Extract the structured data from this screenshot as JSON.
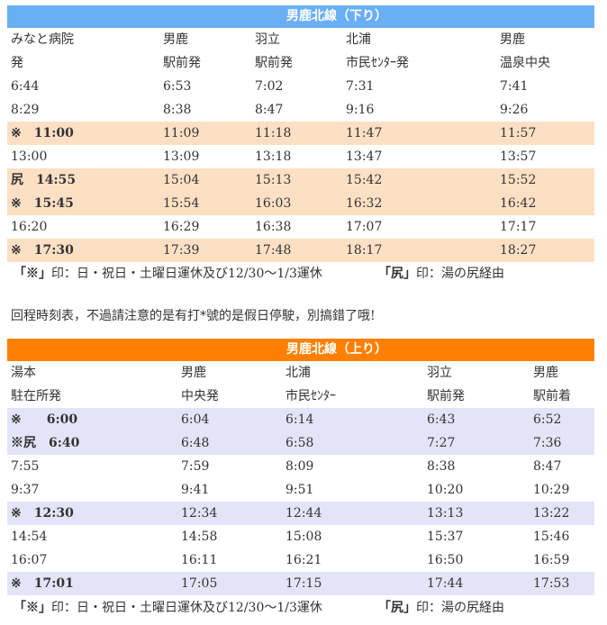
{
  "down": {
    "title": "男鹿北線（下り）",
    "header_color": "#6aaef4",
    "highlight_color": "#fde0c4",
    "col_headers_line1": [
      "みなと病院",
      "男鹿",
      "羽立",
      "北浦",
      "男鹿"
    ],
    "col_headers_line2": [
      "発",
      "駅前発",
      "駅前発",
      "市民ｾﾝﾀｰ発",
      "温泉中央"
    ],
    "rows": [
      {
        "cells": [
          "6:44",
          "6:53",
          "7:02",
          "7:31",
          "7:41"
        ],
        "hl": false
      },
      {
        "cells": [
          "8:29",
          "8:38",
          "8:47",
          "9:16",
          "9:26"
        ],
        "hl": false
      },
      {
        "cells": [
          "※　11:00",
          "11:09",
          "11:18",
          "11:47",
          "11:57"
        ],
        "hl": true
      },
      {
        "cells": [
          "13:00",
          "13:09",
          "13:18",
          "13:47",
          "13:57"
        ],
        "hl": false
      },
      {
        "cells": [
          "尻　14:55",
          "15:04",
          "15:13",
          "15:42",
          "15:52"
        ],
        "hl": true
      },
      {
        "cells": [
          "※　15:45",
          "15:54",
          "16:03",
          "16:32",
          "16:42"
        ],
        "hl": true
      },
      {
        "cells": [
          "16:20",
          "16:29",
          "16:38",
          "17:07",
          "17:17"
        ],
        "hl": false
      },
      {
        "cells": [
          "※　17:30",
          "17:39",
          "17:48",
          "18:17",
          "18:27"
        ],
        "hl": true
      }
    ],
    "note_left_mark": "「※」",
    "note_left_text": "印：日・祝日・土曜日運休及び12/30～1/3運休",
    "note_right_mark": "「尻」",
    "note_right_text": "印：湯の尻経由"
  },
  "message": "回程時刻表，不過請注意的是有打*號的是假日停駛，別搞錯了哦!",
  "up": {
    "title": "男鹿北線（上り）",
    "header_color": "#ff8000",
    "highlight_color": "#e4e4f8",
    "col_headers_line1": [
      "湯本",
      "男鹿",
      "北浦",
      "羽立",
      "男鹿"
    ],
    "col_headers_line2": [
      "駐在所発",
      "中央発",
      "市民ｾﾝﾀｰ",
      "駅前発",
      "駅前着"
    ],
    "rows": [
      {
        "cells": [
          "※　　6:00",
          "6:04",
          "6:14",
          "6:43",
          "6:52"
        ],
        "hl": true
      },
      {
        "cells": [
          "※尻　6:40",
          "6:48",
          "6:58",
          "7:27",
          "7:36"
        ],
        "hl": true
      },
      {
        "cells": [
          "7:55",
          "7:59",
          "8:09",
          "8:38",
          "8:47"
        ],
        "hl": false
      },
      {
        "cells": [
          "9:37",
          "9:41",
          "9:51",
          "10:20",
          "10:29"
        ],
        "hl": false
      },
      {
        "cells": [
          "※　12:30",
          "12:34",
          "12:44",
          "13:13",
          "13:22"
        ],
        "hl": true
      },
      {
        "cells": [
          "14:54",
          "14:58",
          "15:08",
          "15:37",
          "15:46"
        ],
        "hl": false
      },
      {
        "cells": [
          "16:07",
          "16:11",
          "16:21",
          "16:50",
          "16:59"
        ],
        "hl": false
      },
      {
        "cells": [
          "※　17:01",
          "17:05",
          "17:15",
          "17:44",
          "17:53"
        ],
        "hl": true
      }
    ],
    "note_left_mark": "「※」",
    "note_left_text": "印：日・祝日・土曜日運休及び12/30～1/3運休",
    "note_right_mark": "「尻」",
    "note_right_text": "印：湯の尻経由"
  }
}
